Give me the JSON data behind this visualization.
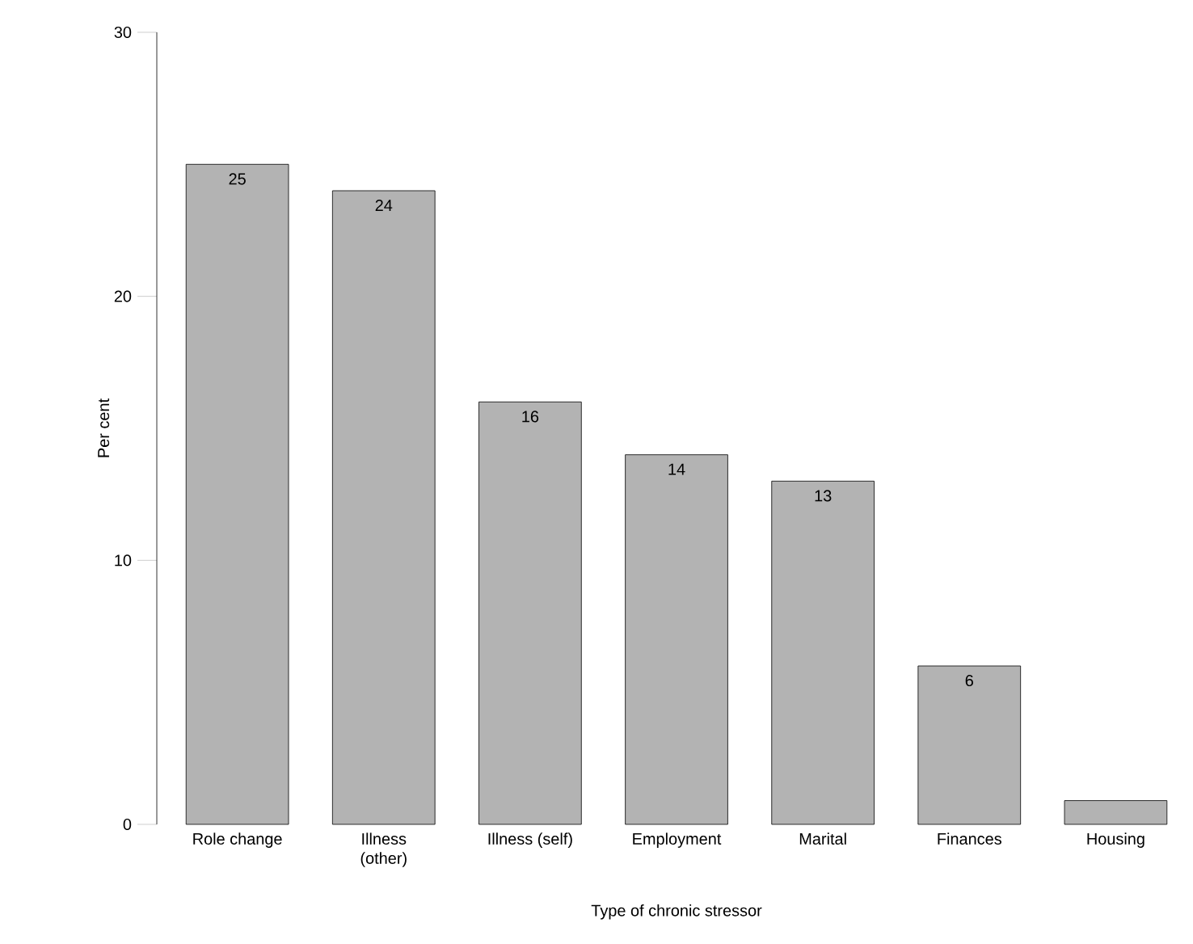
{
  "chart_data": {
    "type": "bar",
    "xlabel": "Type of chronic stressor",
    "ylabel": "Per cent",
    "categories": [
      "Role change",
      "Illness (other)",
      "Illness (self)",
      "Employment",
      "Marital",
      "Finances",
      "Housing"
    ],
    "values": [
      25,
      24,
      16,
      14,
      13,
      6,
      0.9
    ],
    "value_labels": [
      "25",
      "24",
      "16",
      "14",
      "13",
      "6",
      null
    ],
    "color": "#b3b3b3",
    "ylim": [
      0,
      30
    ],
    "yticks": [
      0,
      10,
      20,
      30
    ]
  }
}
